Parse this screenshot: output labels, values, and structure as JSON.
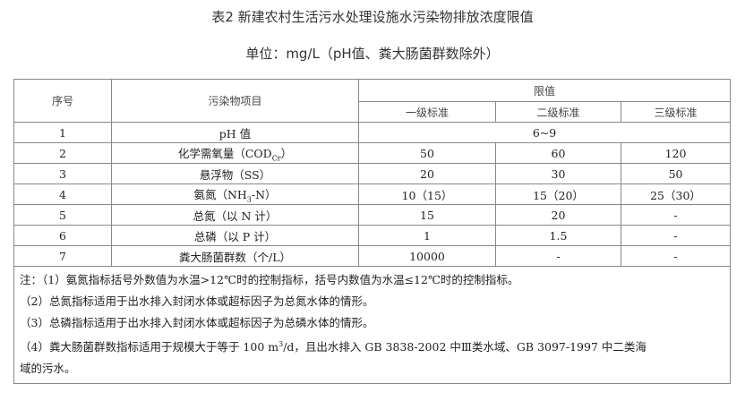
{
  "title": "表2 新建农村生活污水处理设施水污染物排放浓度限值",
  "unit": "单位：mg/L（pH值、粪大肠菌群数除外）",
  "table": {
    "headers": {
      "index": "序号",
      "item": "污染物项目",
      "limit": "限值",
      "grade1": "一级标准",
      "grade2": "二级标准",
      "grade3": "三级标准"
    },
    "rows": [
      {
        "no": "1",
        "item": "pH 值",
        "merged": "6~9"
      },
      {
        "no": "2",
        "item_pre": "化学需氧量（COD",
        "item_sub": "Cr",
        "item_post": "）",
        "g1": "50",
        "g2": "60",
        "g3": "120"
      },
      {
        "no": "3",
        "item": "悬浮物（SS）",
        "g1": "20",
        "g2": "30",
        "g3": "50"
      },
      {
        "no": "4",
        "item_pre": "氨氮（NH",
        "item_sub": "3",
        "item_post": "-N）",
        "g1": "10（15）",
        "g2": "15（20）",
        "g3": "25（30）"
      },
      {
        "no": "5",
        "item": "总氮（以 N 计）",
        "g1": "15",
        "g2": "20",
        "g3": "-"
      },
      {
        "no": "6",
        "item": "总磷（以 P 计）",
        "g1": "1",
        "g2": "1.5",
        "g3": "-"
      },
      {
        "no": "7",
        "item": "粪大肠菌群数（个/L）",
        "g1": "10000",
        "g2": "-",
        "g3": "-"
      }
    ],
    "notes": {
      "n1": "注：（1）氨氮指标括号外数值为水温>12℃时的控制指标，括号内数值为水温≤12℃时的控制指标。",
      "n2": "（2）总氮指标适用于出水排入封闭水体或超标因子为总氮水体的情形。",
      "n3": "（3）总磷指标适用于出水排入封闭水体或超标因子为总磷水体的情形。",
      "n4_pre": "（4）粪大肠菌群数指标适用于规模大于等于 100 m",
      "n4_sup": "3",
      "n4_post": "/d，且出水排入 GB 3838-2002 中Ⅲ类水域、GB 3097-1997 中二类海",
      "n5": "域的污水。"
    }
  }
}
